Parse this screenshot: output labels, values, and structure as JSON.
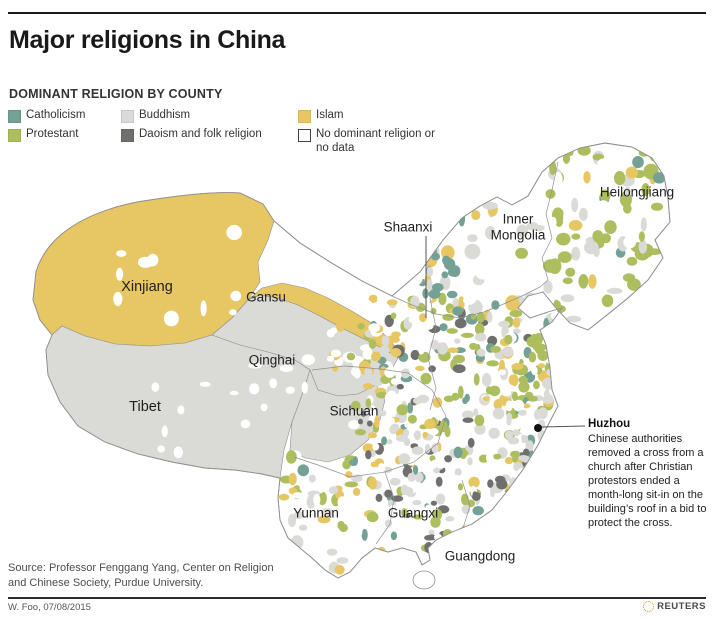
{
  "header": {
    "title": "Major religions in China",
    "subtitle": "DOMINANT RELIGION BY COUNTY"
  },
  "colors": {
    "catholicism": "#74A095",
    "protestant": "#ADBE5E",
    "buddhism": "#DADAD7",
    "daoism": "#6F6F6D",
    "islam": "#E7C763",
    "none": "#FFFFFF",
    "map_border": "#909090",
    "leader_line": "#555555",
    "rule": "#1A1A1A"
  },
  "legend": {
    "items": [
      {
        "label": "Catholicism",
        "color_key": "catholicism"
      },
      {
        "label": "Protestant",
        "color_key": "protestant"
      },
      {
        "label": "Buddhism",
        "color_key": "buddhism"
      },
      {
        "label": "Daoism and folk religion",
        "color_key": "daoism"
      },
      {
        "label": "Islam",
        "color_key": "islam"
      },
      {
        "label": "No dominant religion or no data",
        "color_key": "none"
      }
    ]
  },
  "map": {
    "labels": [
      {
        "name": "Xinjiang"
      },
      {
        "name": "Gansu"
      },
      {
        "name": "Qinghai"
      },
      {
        "name": "Tibet"
      },
      {
        "name": "Shaanxi"
      },
      {
        "name": "Inner Mongolia"
      },
      {
        "name": "Heilongjiang"
      },
      {
        "name": "Sichuan"
      },
      {
        "name": "Yunnan"
      },
      {
        "name": "Guangxi"
      },
      {
        "name": "Guangdong"
      }
    ]
  },
  "annotation": {
    "title": "Huzhou",
    "body": "Chinese authorities removed a cross from a church after Christian protestors ended a month-long sit-in on the building’s roof in a bid to protect the cross."
  },
  "source": {
    "line1": "Source: Professor Fenggang Yang, Center on Religion",
    "line2": "and Chinese Society, Purdue University."
  },
  "footer": {
    "credit": "W. Foo, 07/08/2015",
    "brand": "REUTERS"
  }
}
